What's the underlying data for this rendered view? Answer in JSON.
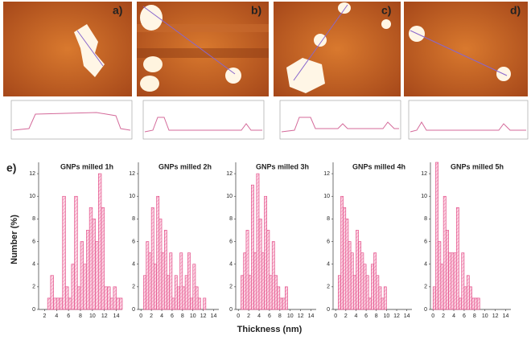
{
  "panel_labels": [
    "a)",
    "b)",
    "c)",
    "d)",
    "e)"
  ],
  "axis_labels": {
    "y": "Number (%)",
    "x": "Thickness (nm)"
  },
  "chart_data": [
    {
      "type": "histogram",
      "title": "GNPs milled 1h",
      "color": "#e0407f",
      "bins": [
        2.5,
        3,
        3.5,
        4,
        4.5,
        5,
        5.5,
        6,
        6.5,
        7,
        7.5,
        8,
        8.5,
        9,
        9.5,
        10,
        10.5,
        11,
        11.5,
        12,
        12.5,
        13,
        13.5,
        14,
        14.5,
        15
      ],
      "values": [
        1,
        3,
        1,
        1,
        1,
        10,
        2,
        1,
        4,
        10,
        2,
        6,
        4,
        7,
        9,
        8,
        6,
        12,
        9,
        2,
        2,
        1,
        2,
        1,
        1
      ],
      "xlim": [
        1,
        15
      ],
      "xticks": [
        2,
        4,
        6,
        8,
        10,
        12,
        14
      ],
      "ylim": [
        0,
        13
      ],
      "yticks": [
        0,
        2,
        4,
        6,
        8,
        10,
        12
      ]
    },
    {
      "type": "histogram",
      "title": "GNPs milled 2h",
      "color": "#e0407f",
      "bins": [
        0.5,
        1,
        1.5,
        2,
        2.5,
        3,
        3.5,
        4,
        4.5,
        5,
        5.5,
        6,
        6.5,
        7,
        7.5,
        8,
        8.5,
        9,
        9.5,
        10,
        10.5,
        11,
        11.5,
        12,
        12.5
      ],
      "values": [
        3,
        6,
        5,
        9,
        4,
        10,
        8,
        5,
        7,
        3,
        5,
        1,
        3,
        2,
        5,
        2,
        3,
        5,
        1,
        4,
        2,
        1,
        0,
        1
      ],
      "xlim": [
        -0.5,
        15
      ],
      "xticks": [
        0,
        2,
        4,
        6,
        8,
        10,
        12,
        14
      ],
      "ylim": [
        0,
        13
      ],
      "yticks": [
        0,
        2,
        4,
        6,
        8,
        10,
        12
      ]
    },
    {
      "type": "histogram",
      "title": "GNPs milled 3h",
      "color": "#e0407f",
      "bins": [
        0.5,
        1,
        1.5,
        2,
        2.5,
        3,
        3.5,
        4,
        4.5,
        5,
        5.5,
        6,
        6.5,
        7,
        7.5,
        8,
        8.5,
        9,
        9.5
      ],
      "values": [
        3,
        5,
        7,
        3,
        11,
        5,
        12,
        8,
        5,
        10,
        7,
        3,
        6,
        3,
        2,
        1,
        1,
        2
      ],
      "xlim": [
        -0.5,
        15
      ],
      "xticks": [
        0,
        2,
        4,
        6,
        8,
        10,
        12,
        14
      ],
      "ylim": [
        0,
        13
      ],
      "yticks": [
        0,
        2,
        4,
        6,
        8,
        10,
        12
      ]
    },
    {
      "type": "histogram",
      "title": "GNPs milled 4h",
      "color": "#e0407f",
      "bins": [
        0.5,
        1,
        1.5,
        2,
        2.5,
        3,
        3.5,
        4,
        4.5,
        5,
        5.5,
        6,
        6.5,
        7,
        7.5,
        8,
        8.5,
        9,
        9.5,
        10
      ],
      "values": [
        3,
        10,
        9,
        8,
        6,
        5,
        3,
        7,
        6,
        5,
        4,
        3,
        1,
        4,
        5,
        3,
        2,
        1,
        2
      ],
      "xlim": [
        -0.5,
        15
      ],
      "xticks": [
        0,
        2,
        4,
        6,
        8,
        10,
        12,
        14
      ],
      "ylim": [
        0,
        13
      ],
      "yticks": [
        0,
        2,
        4,
        6,
        8,
        10,
        12
      ]
    },
    {
      "type": "histogram",
      "title": "GNPs milled 5h",
      "color": "#e0407f",
      "bins": [
        0,
        0.5,
        1,
        1.5,
        2,
        2.5,
        3,
        3.5,
        4,
        4.5,
        5,
        5.5,
        6,
        6.5,
        7,
        7.5,
        8,
        8.5,
        9
      ],
      "values": [
        2,
        13,
        6,
        4,
        10,
        7,
        5,
        5,
        5,
        9,
        1,
        5,
        2,
        3,
        2,
        1,
        1,
        1
      ],
      "xlim": [
        -0.5,
        15
      ],
      "xticks": [
        0,
        2,
        4,
        6,
        8,
        10,
        12,
        14
      ],
      "ylim": [
        0,
        13
      ],
      "yticks": [
        0,
        2,
        4,
        6,
        8,
        10,
        12
      ]
    }
  ]
}
